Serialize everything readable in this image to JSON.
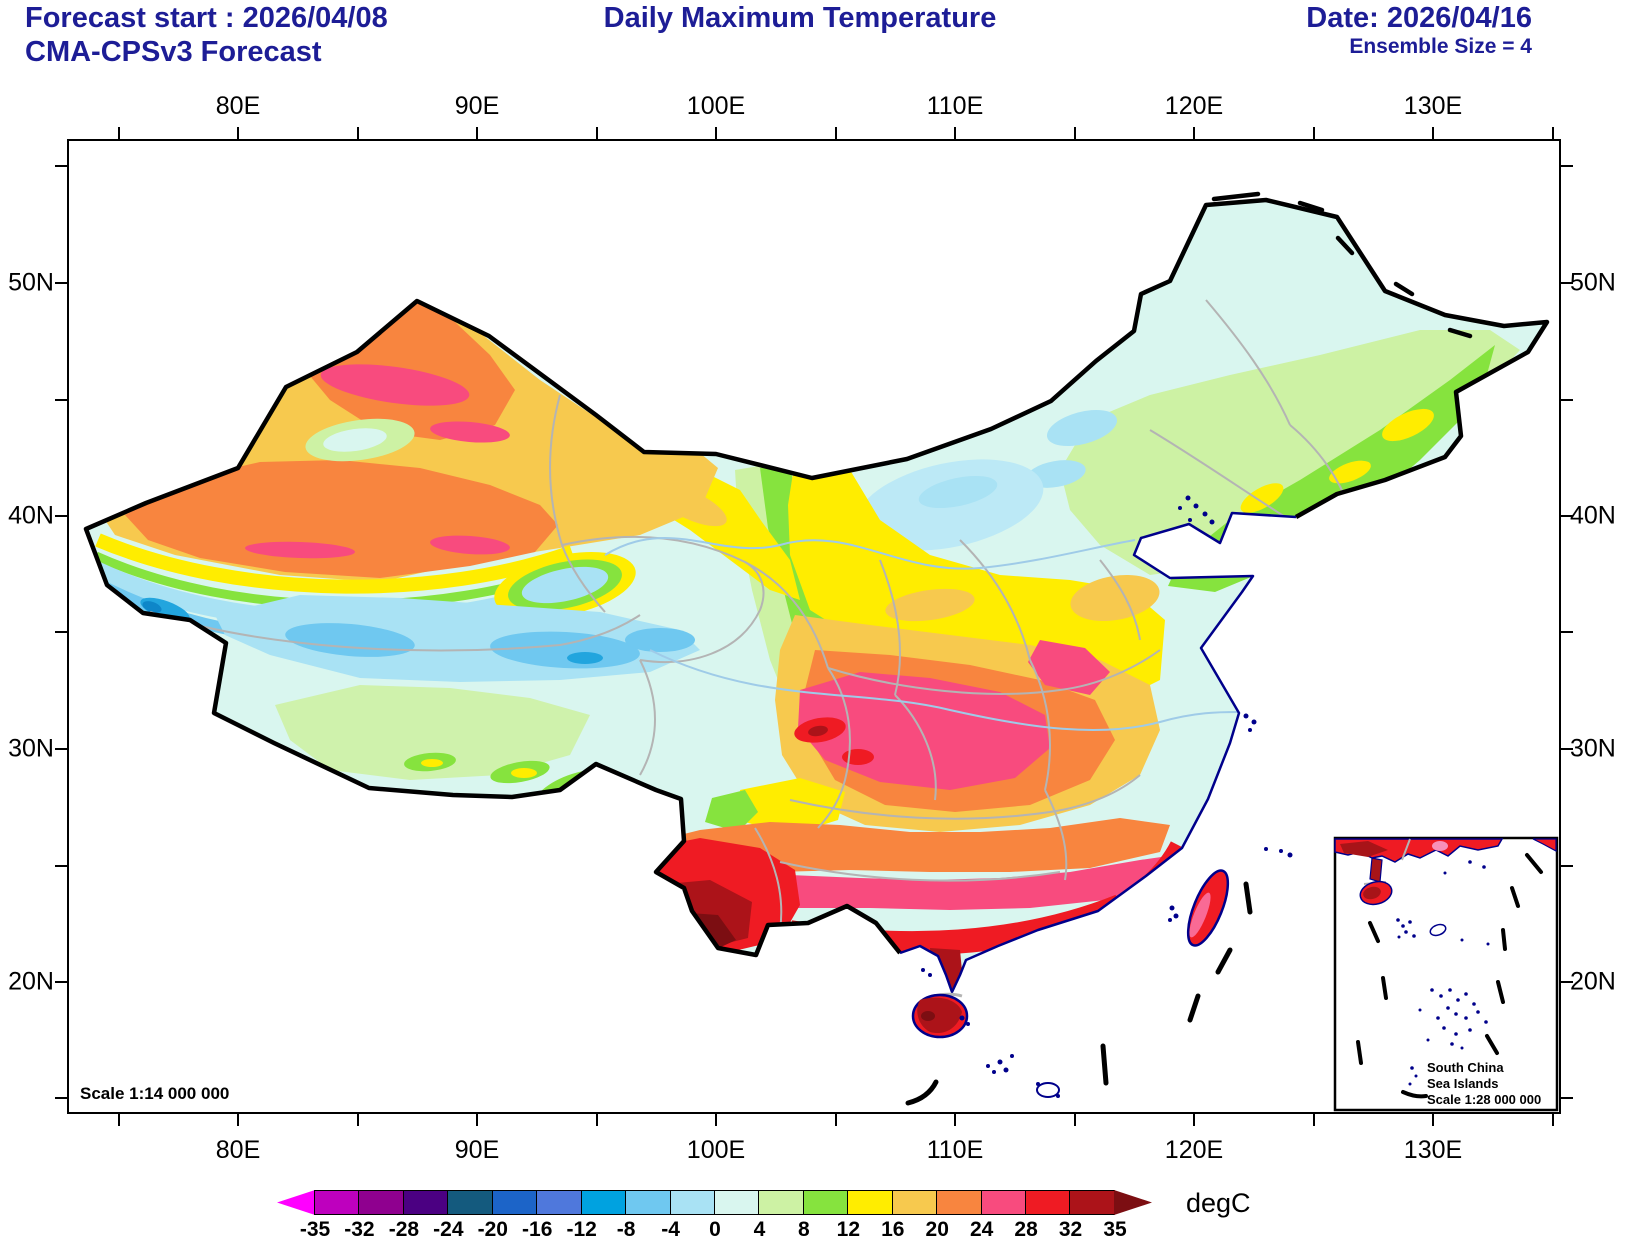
{
  "header": {
    "forecast_start": "Forecast start : 2026/04/08",
    "model": "CMA-CPSv3 Forecast",
    "title": "Daily Maximum Temperature",
    "date": "Date: 2026/04/16",
    "ensemble": "Ensemble Size = 4"
  },
  "map": {
    "lon_labels": [
      "80E",
      "90E",
      "100E",
      "110E",
      "120E",
      "130E"
    ],
    "lat_labels": [
      "50N",
      "40N",
      "30N",
      "20N"
    ],
    "scale_label": "Scale 1:14 000 000",
    "inset": {
      "line1": "South China",
      "line2": "Sea Islands",
      "line3": "Scale 1:28 000 000"
    }
  },
  "colorbar": {
    "units_label": "degC",
    "tick_labels": [
      "-35",
      "-32",
      "-28",
      "-24",
      "-20",
      "-16",
      "-12",
      "-8",
      "-4",
      "0",
      "4",
      "8",
      "12",
      "16",
      "20",
      "24",
      "28",
      "32",
      "35"
    ],
    "cell_colors": [
      "#BE00BE",
      "#8F008F",
      "#4B0082",
      "#145A7E",
      "#1C64C8",
      "#4F78DC",
      "#00A2E0",
      "#6FC8F0",
      "#A9E2F4",
      "#D9F6EF",
      "#CDF2A4",
      "#86E33E",
      "#FFED00",
      "#F7C94E",
      "#F8853F",
      "#F84B7E",
      "#EF1B23",
      "#AC1319"
    ],
    "arrow_left_color": "#FF00FF",
    "arrow_right_color": "#7C0E12"
  }
}
